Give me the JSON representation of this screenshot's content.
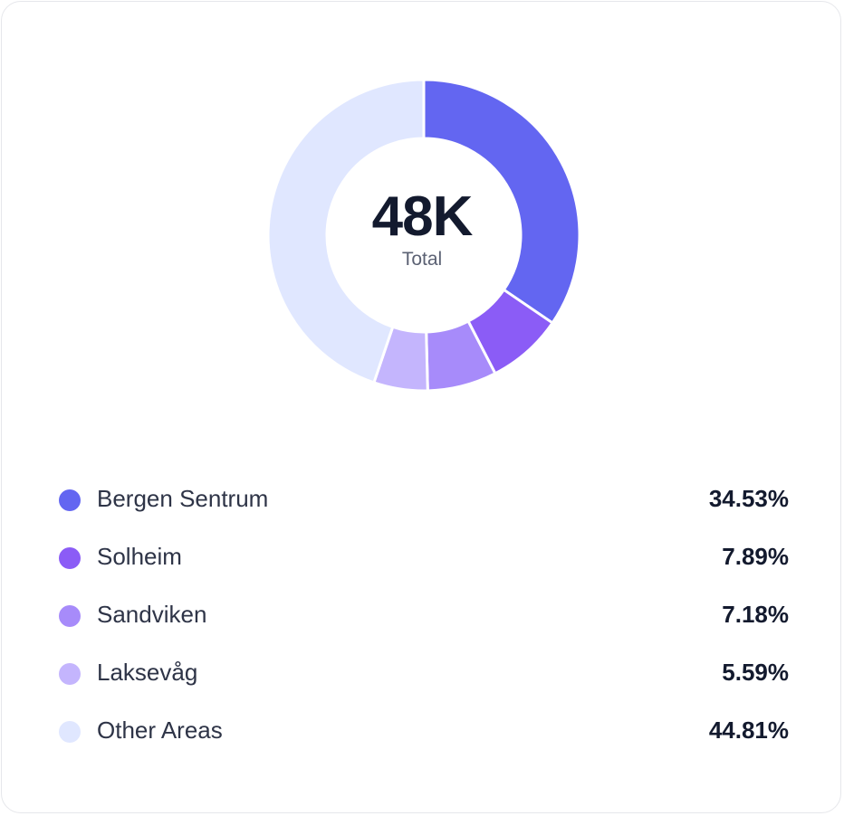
{
  "chart_data": {
    "type": "pie",
    "center": {
      "value": "48K",
      "label": "Total"
    },
    "categories": [
      "Bergen Sentrum",
      "Solheim",
      "Sandviken",
      "Laksevåg",
      "Other Areas"
    ],
    "values": [
      34.53,
      7.89,
      7.18,
      5.59,
      44.81
    ],
    "value_labels": [
      "34.53%",
      "7.89%",
      "7.18%",
      "5.59%",
      "44.81%"
    ],
    "colors": [
      "#6366f1",
      "#8b5cf6",
      "#a78bfa",
      "#c4b5fd",
      "#e0e7ff"
    ],
    "legend": "bottom"
  }
}
